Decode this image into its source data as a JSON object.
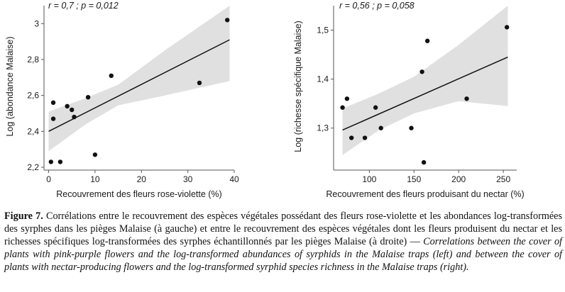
{
  "chart_data": [
    {
      "type": "scatter",
      "annotation": "r = 0,7 ; p = 0,012",
      "xlabel": "Recouvrement des fleurs rose-violette (%)",
      "ylabel": "Log (abondance Malaise)",
      "xlim": [
        -1,
        40
      ],
      "ylim": [
        2.2,
        3.1
      ],
      "xticks": [
        0,
        10,
        20,
        30,
        40
      ],
      "xtick_labels": [
        "0",
        "10",
        "20",
        "30",
        "40"
      ],
      "yticks": [
        2.2,
        2.4,
        2.6,
        2.8,
        3.0
      ],
      "ytick_labels": [
        "2,2",
        "2,4",
        "2,6",
        "2,8",
        "3"
      ],
      "points": [
        {
          "x": 0.5,
          "y": 2.23
        },
        {
          "x": 1,
          "y": 2.56
        },
        {
          "x": 1,
          "y": 2.47
        },
        {
          "x": 2.5,
          "y": 2.23
        },
        {
          "x": 4,
          "y": 2.54
        },
        {
          "x": 5,
          "y": 2.52
        },
        {
          "x": 5.5,
          "y": 2.48
        },
        {
          "x": 8.5,
          "y": 2.59
        },
        {
          "x": 10,
          "y": 2.27
        },
        {
          "x": 13.5,
          "y": 2.71
        },
        {
          "x": 32.5,
          "y": 2.67
        },
        {
          "x": 38.5,
          "y": 3.02
        }
      ],
      "fit": {
        "x": [
          0,
          39
        ],
        "y": [
          2.4,
          2.91
        ]
      },
      "band_upper": [
        {
          "x": 0,
          "y": 2.51
        },
        {
          "x": 8,
          "y": 2.585
        },
        {
          "x": 15,
          "y": 2.66
        },
        {
          "x": 25,
          "y": 2.85
        },
        {
          "x": 39,
          "y": 3.14
        }
      ],
      "band_lower": [
        {
          "x": 0,
          "y": 2.29
        },
        {
          "x": 8,
          "y": 2.44
        },
        {
          "x": 15,
          "y": 2.545
        },
        {
          "x": 25,
          "y": 2.6
        },
        {
          "x": 39,
          "y": 2.68
        }
      ],
      "grid": false
    },
    {
      "type": "scatter",
      "annotation": "r = 0,56 ; p = 0,058",
      "xlabel": "Recouvrement des fleurs produisant du nectar (%)",
      "ylabel": "Log (richesse spécifique Malaise)",
      "xlim": [
        60,
        265
      ],
      "ylim": [
        1.22,
        1.55
      ],
      "xticks": [
        100,
        150,
        200,
        250
      ],
      "xtick_labels": [
        "100",
        "150",
        "200",
        "250"
      ],
      "yticks": [
        1.3,
        1.4,
        1.5
      ],
      "ytick_labels": [
        "1,3",
        "1,4",
        "1,5"
      ],
      "points": [
        {
          "x": 70,
          "y": 1.342
        },
        {
          "x": 75,
          "y": 1.36
        },
        {
          "x": 80,
          "y": 1.28
        },
        {
          "x": 95,
          "y": 1.28
        },
        {
          "x": 107,
          "y": 1.342
        },
        {
          "x": 113,
          "y": 1.3
        },
        {
          "x": 147,
          "y": 1.3
        },
        {
          "x": 159,
          "y": 1.415
        },
        {
          "x": 161,
          "y": 1.23
        },
        {
          "x": 165,
          "y": 1.478
        },
        {
          "x": 209,
          "y": 1.36
        },
        {
          "x": 254,
          "y": 1.506
        }
      ],
      "fit": {
        "x": [
          70,
          255
        ],
        "y": [
          1.296,
          1.445
        ]
      },
      "band_upper": [
        {
          "x": 70,
          "y": 1.34
        },
        {
          "x": 110,
          "y": 1.37
        },
        {
          "x": 150,
          "y": 1.405
        },
        {
          "x": 200,
          "y": 1.47
        },
        {
          "x": 255,
          "y": 1.555
        }
      ],
      "band_lower": [
        {
          "x": 70,
          "y": 1.245
        },
        {
          "x": 110,
          "y": 1.295
        },
        {
          "x": 150,
          "y": 1.33
        },
        {
          "x": 200,
          "y": 1.355
        },
        {
          "x": 255,
          "y": 1.345
        }
      ],
      "grid": false
    }
  ],
  "caption": {
    "label": "Figure 7.",
    "french": " Corrélations entre le recouvrement des espèces végétales possédant des fleurs rose-violette et les abondances log-transformées des syrphes dans les pièges Malaise (à gauche) et entre le recouvrement des espèces végétales dont les fleurs produisent du nectar et les richesses spécifiques log-transformées des syrphes échantillonnés par les pièges Malaise (à droite) — ",
    "english": "Correlations between the cover of plants with pink-purple flowers and the log-transformed abundances of syrphids in the Malaise traps (left) and between the cover of plants with nectar-producing flowers and the log-transformed syrphid species richness in the Malaise traps (right)."
  },
  "colors": {
    "band": "#e0e0e0",
    "point": "#111111",
    "line": "#111111",
    "axis": "#555555"
  }
}
